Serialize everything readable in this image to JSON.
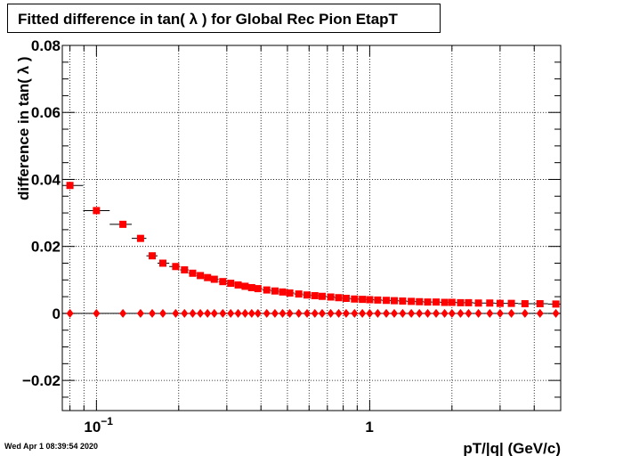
{
  "title": "Fitted difference in tan( λ ) for Global Rec Pion EtapT",
  "timestamp": "Wed Apr  1 08:39:54 2020",
  "chart_data": {
    "type": "scatter",
    "title": "Fitted difference in tan( λ ) for Global Rec Pion EtapT",
    "xlabel": "pT/|q| (GeV/c)",
    "ylabel": "difference in tan( λ )",
    "xscale": "log",
    "xlim": [
      0.075,
      5.0
    ],
    "ylim": [
      -0.029,
      0.08
    ],
    "grid": true,
    "x_tick_labels": [
      {
        "value": 0.1,
        "base": "10",
        "exp": "−1"
      },
      {
        "value": 1,
        "base": "1",
        "exp": ""
      }
    ],
    "y_tick_labels": [
      "−0.02",
      "0",
      "0.02",
      "0.04",
      "0.06",
      "0.08"
    ],
    "y_tick_values": [
      -0.02,
      0,
      0.02,
      0.04,
      0.06,
      0.08
    ],
    "series": [
      {
        "marker": "square",
        "color": "#ff0000",
        "points": [
          [
            0.08,
            0.0382
          ],
          [
            0.1,
            0.0307
          ],
          [
            0.125,
            0.0266
          ],
          [
            0.145,
            0.0224
          ],
          [
            0.16,
            0.0172
          ],
          [
            0.175,
            0.015
          ],
          [
            0.195,
            0.014
          ],
          [
            0.21,
            0.013
          ],
          [
            0.225,
            0.012
          ],
          [
            0.24,
            0.0113
          ],
          [
            0.255,
            0.0107
          ],
          [
            0.27,
            0.0102
          ],
          [
            0.29,
            0.0095
          ],
          [
            0.31,
            0.009
          ],
          [
            0.33,
            0.0085
          ],
          [
            0.35,
            0.0081
          ],
          [
            0.37,
            0.0077
          ],
          [
            0.39,
            0.0074
          ],
          [
            0.42,
            0.007
          ],
          [
            0.45,
            0.0067
          ],
          [
            0.48,
            0.0064
          ],
          [
            0.51,
            0.0061
          ],
          [
            0.55,
            0.0058
          ],
          [
            0.59,
            0.0055
          ],
          [
            0.63,
            0.0053
          ],
          [
            0.67,
            0.0051
          ],
          [
            0.72,
            0.0049
          ],
          [
            0.77,
            0.0047
          ],
          [
            0.82,
            0.0045
          ],
          [
            0.88,
            0.0043
          ],
          [
            0.94,
            0.0042
          ],
          [
            1.0,
            0.0041
          ],
          [
            1.07,
            0.004
          ],
          [
            1.15,
            0.0039
          ],
          [
            1.23,
            0.0038
          ],
          [
            1.32,
            0.0037
          ],
          [
            1.42,
            0.0036
          ],
          [
            1.52,
            0.0035
          ],
          [
            1.63,
            0.0034
          ],
          [
            1.75,
            0.0034
          ],
          [
            1.88,
            0.0033
          ],
          [
            2.0,
            0.0033
          ],
          [
            2.15,
            0.0032
          ],
          [
            2.3,
            0.0032
          ],
          [
            2.5,
            0.0031
          ],
          [
            2.75,
            0.0031
          ],
          [
            3.0,
            0.003
          ],
          [
            3.3,
            0.003
          ],
          [
            3.7,
            0.0029
          ],
          [
            4.2,
            0.0029
          ],
          [
            4.8,
            0.0028
          ]
        ]
      },
      {
        "marker": "diamond",
        "color": "#ff0000",
        "points": [
          [
            0.08,
            0.0
          ],
          [
            0.1,
            0.0
          ],
          [
            0.125,
            0.0
          ],
          [
            0.145,
            0.0
          ],
          [
            0.16,
            0.0
          ],
          [
            0.175,
            0.0
          ],
          [
            0.195,
            0.0
          ],
          [
            0.21,
            0.0
          ],
          [
            0.225,
            0.0
          ],
          [
            0.24,
            0.0
          ],
          [
            0.255,
            0.0
          ],
          [
            0.27,
            0.0
          ],
          [
            0.29,
            0.0
          ],
          [
            0.31,
            0.0
          ],
          [
            0.33,
            0.0
          ],
          [
            0.35,
            0.0
          ],
          [
            0.37,
            0.0
          ],
          [
            0.39,
            0.0
          ],
          [
            0.42,
            0.0
          ],
          [
            0.45,
            0.0
          ],
          [
            0.48,
            0.0
          ],
          [
            0.51,
            0.0
          ],
          [
            0.55,
            0.0
          ],
          [
            0.59,
            0.0
          ],
          [
            0.63,
            0.0
          ],
          [
            0.67,
            0.0
          ],
          [
            0.72,
            0.0
          ],
          [
            0.77,
            0.0
          ],
          [
            0.82,
            0.0
          ],
          [
            0.88,
            0.0
          ],
          [
            0.94,
            0.0
          ],
          [
            1.0,
            0.0
          ],
          [
            1.07,
            0.0
          ],
          [
            1.15,
            0.0
          ],
          [
            1.23,
            0.0
          ],
          [
            1.32,
            0.0
          ],
          [
            1.42,
            0.0
          ],
          [
            1.52,
            0.0
          ],
          [
            1.63,
            0.0
          ],
          [
            1.75,
            0.0
          ],
          [
            1.88,
            0.0
          ],
          [
            2.0,
            0.0
          ],
          [
            2.15,
            0.0
          ],
          [
            2.3,
            0.0
          ],
          [
            2.5,
            0.0
          ],
          [
            2.75,
            0.0
          ],
          [
            3.0,
            0.0
          ],
          [
            3.3,
            0.0
          ],
          [
            3.7,
            0.0
          ],
          [
            4.2,
            0.0
          ],
          [
            4.8,
            0.0
          ]
        ]
      }
    ]
  }
}
